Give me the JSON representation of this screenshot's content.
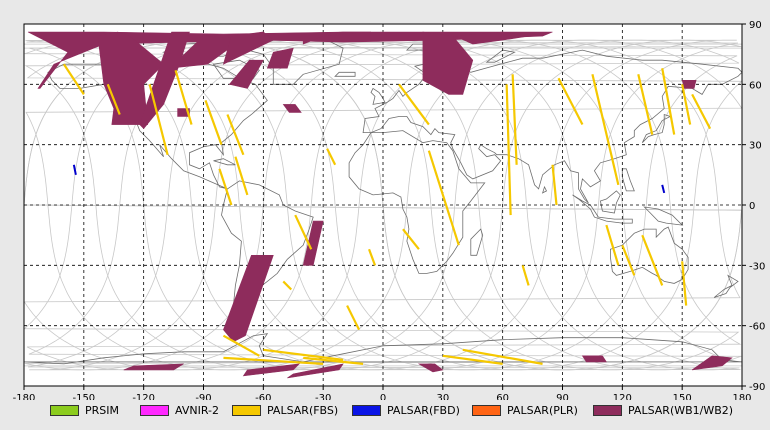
{
  "map": {
    "x_ticks": [
      "-180",
      "-150",
      "-120",
      "-90",
      "-60",
      "-30",
      "0",
      "30",
      "60",
      "90",
      "120",
      "150",
      "180"
    ],
    "y_ticks": [
      "90",
      "60",
      "30",
      "0",
      "-30",
      "-60",
      "-90"
    ],
    "colors": {
      "background": "#ffffff",
      "frame_bg": "#e8e8e8",
      "grid": "#000000",
      "coast": "#6e6e6e",
      "orbit": "#c8c8c8",
      "fbs": "#f5c800",
      "fbd": "#0000cc",
      "wb": "#8e2c5c"
    }
  },
  "legend": [
    {
      "label": "PRSIM",
      "color": "#8ccc1e"
    },
    {
      "label": "AVNIR-2",
      "color": "#ff28ff"
    },
    {
      "label": "PALSAR(FBS)",
      "color": "#f5c800"
    },
    {
      "label": "PALSAR(FBD)",
      "color": "#0a14e6"
    },
    {
      "label": "PALSAR(PLR)",
      "color": "#ff6414"
    },
    {
      "label": "PALSAR(WB1/WB2)",
      "color": "#8e2c5c"
    }
  ]
}
